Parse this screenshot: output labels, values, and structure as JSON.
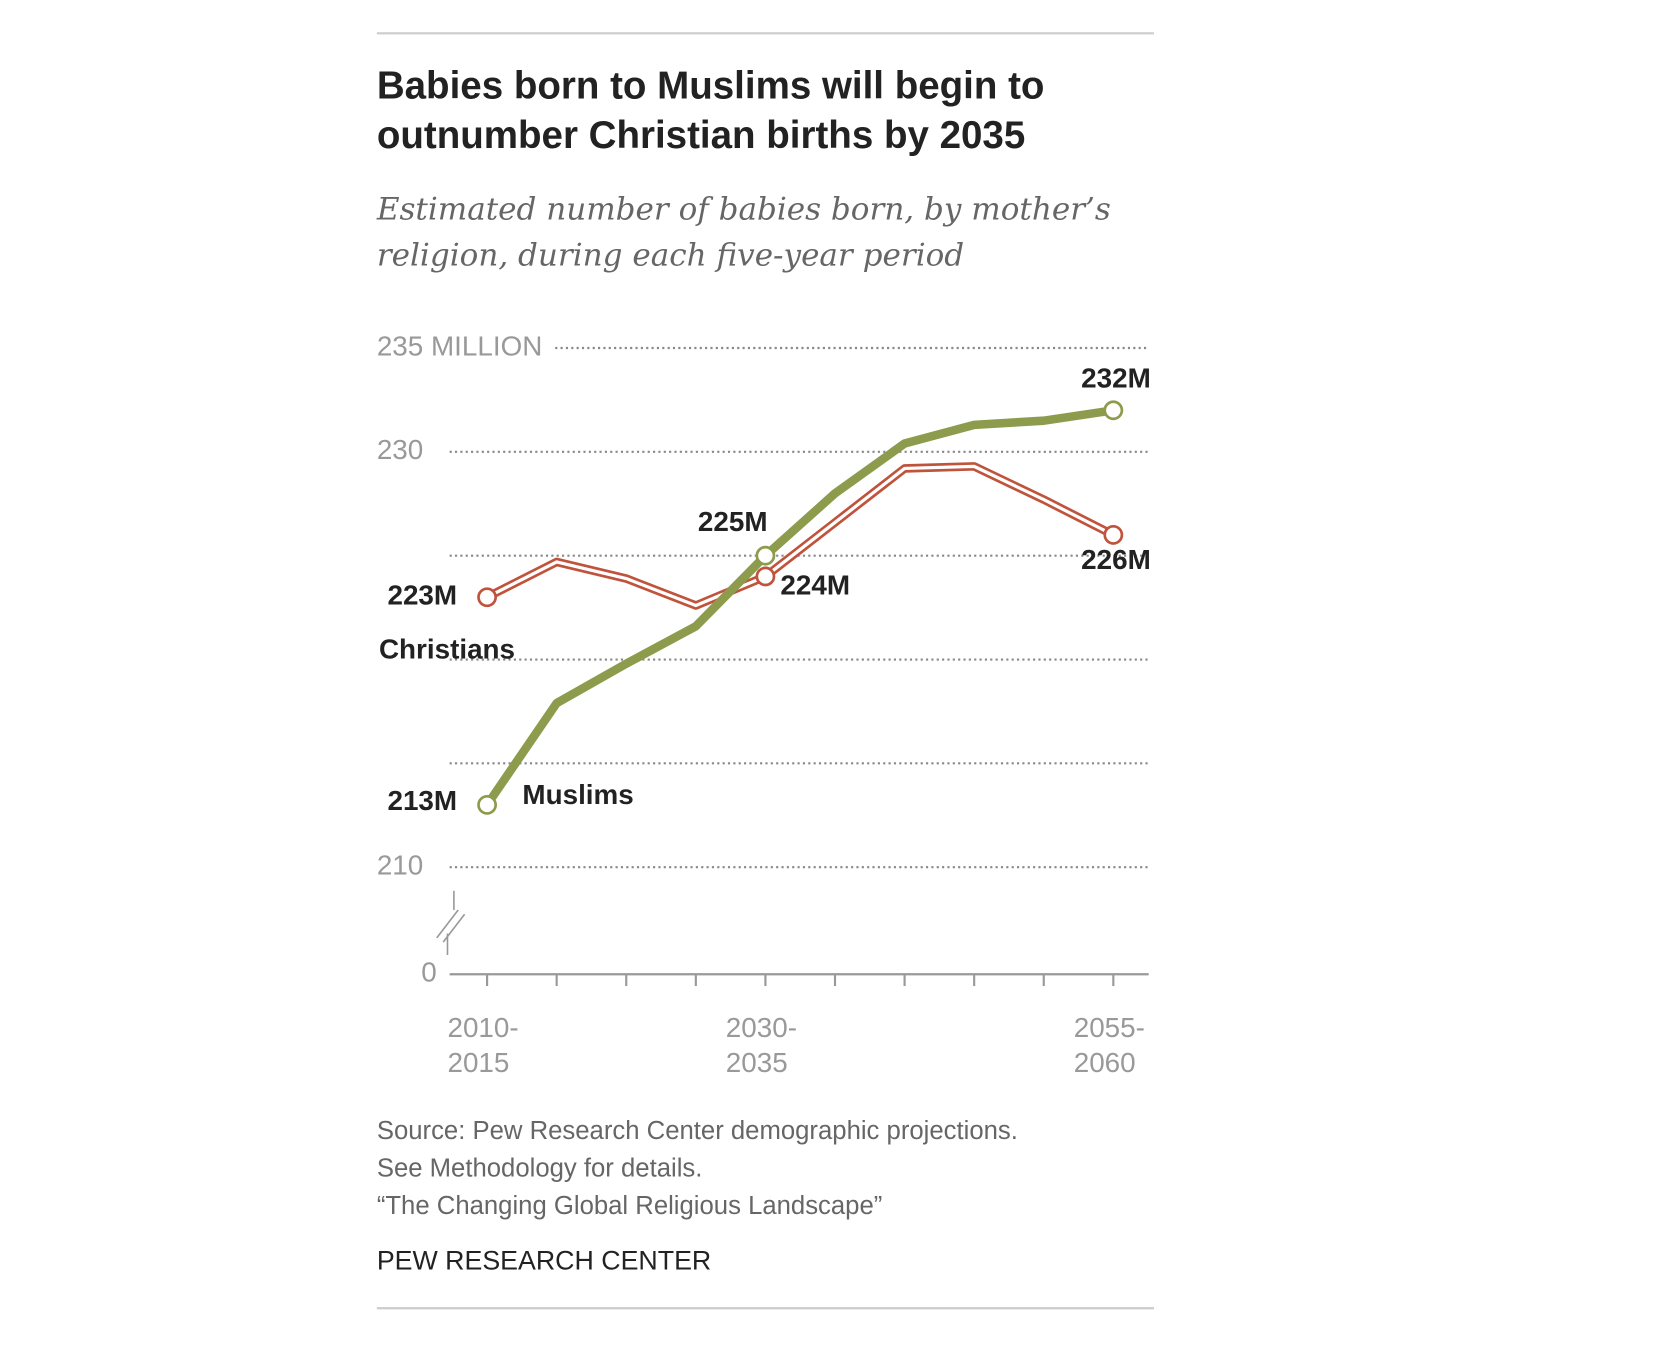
{
  "chart_data": {
    "type": "line",
    "title": [
      "Babies born to Muslims will begin to",
      "outnumber Christian births by 2035"
    ],
    "subtitle": [
      "Estimated number of babies born, by mother’s",
      "religion, during each five-year period"
    ],
    "categories": [
      "2010-\n2015",
      null,
      null,
      null,
      "2030-\n2035",
      null,
      null,
      null,
      null,
      "2055-\n2060"
    ],
    "series": [
      {
        "name": "Christians",
        "color": "#c0533b",
        "values": [
          223,
          224.7,
          223.9,
          222.6,
          224,
          226.6,
          229.2,
          229.3,
          227.7,
          226
        ],
        "value_labels": [
          "223M",
          null,
          null,
          null,
          "224M",
          null,
          null,
          null,
          null,
          "226M"
        ]
      },
      {
        "name": "Muslims",
        "color": "#8d9b4c",
        "values": [
          213,
          217.9,
          219.8,
          221.6,
          225,
          228,
          230.4,
          231.3,
          231.5,
          232
        ],
        "value_labels": [
          "213M",
          null,
          null,
          null,
          "225M",
          null,
          null,
          null,
          null,
          "232M"
        ]
      }
    ],
    "ylim": [
      0,
      235
    ],
    "axis_break": [
      0,
      210
    ],
    "yticks": [
      0,
      210,
      {
        "value": 215,
        "label": null
      },
      {
        "value": 220,
        "label": null
      },
      {
        "value": 225,
        "label": null
      },
      230,
      {
        "value": 235,
        "label": "235 MILLION"
      }
    ],
    "grid": true,
    "source": [
      "Source: Pew Research Center demographic projections.",
      "See Methodology for details.",
      "“The Changing Global Religious Landscape”"
    ],
    "credit": "PEW RESEARCH CENTER"
  }
}
